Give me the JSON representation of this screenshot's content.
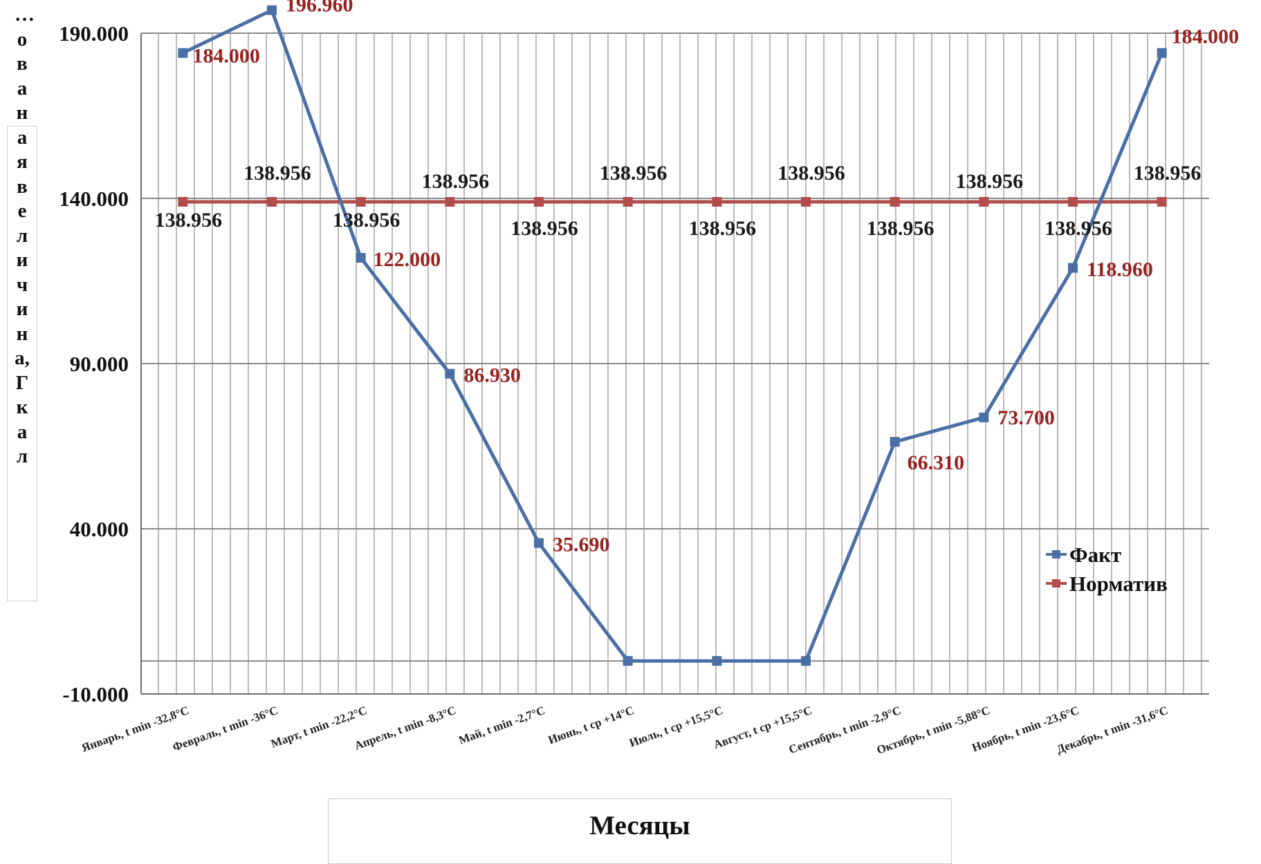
{
  "chart_data": {
    "type": "line",
    "categories": [
      "Январь, t min -32,8°C",
      "Февраль, t min -36°C",
      "Март, t min -22,2°C",
      "Апрель, t min -8,3°C",
      "Май, t min -2,7°C",
      "Июнь, t ср +14°C",
      "Июль, t ср +15,5°C",
      "Август, t ср +15,5°C",
      "Сентябрь, t min -2,9°C",
      "Октябрь, t min -5,88°C",
      "Ноябрь, t min -23,6°C",
      "Декабрь, t min -31,6°C"
    ],
    "series": [
      {
        "name": "Факт",
        "color": "#4a6fa5",
        "values": [
          184.0,
          196.96,
          122.0,
          86.93,
          35.69,
          0,
          0,
          0,
          66.31,
          73.7,
          118.96,
          184.0
        ],
        "labels": [
          "184.000",
          "196.960",
          "122.000",
          "86.930",
          "35.690",
          null,
          null,
          null,
          "66.310",
          "73.700",
          "118.960",
          "184.000"
        ]
      },
      {
        "name": "Норматив",
        "color": "#b24d4d",
        "values": [
          138.956,
          138.956,
          138.956,
          138.956,
          138.956,
          138.956,
          138.956,
          138.956,
          138.956,
          138.956,
          138.956,
          138.956
        ],
        "labels": [
          "138.956",
          "138.956",
          "138.956",
          "138.956",
          "138.956",
          "138.956",
          "138.956",
          "138.956",
          "138.956",
          "138.956",
          "138.956",
          "138.956"
        ]
      }
    ],
    "y_ticks": [
      "190.000",
      "140.000",
      "90.000",
      "40.000",
      "-10.000"
    ],
    "ylim": [
      -10,
      190
    ],
    "ylabel": "…ованаявеличина,Гкал",
    "xlabel": "Месяцы",
    "legend_position": "right",
    "grid": true
  }
}
